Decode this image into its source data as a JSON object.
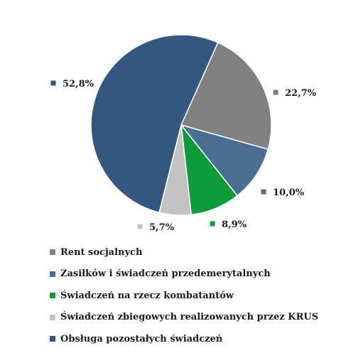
{
  "chart_data": {
    "type": "pie",
    "categories": [
      "Rent socjalnych",
      "Zasiłków i świadczeń przedemerytalnych",
      "Świadczeń na rzecz kombatantów",
      "Świadczeń zbiegowych realizowanych przez KRUS",
      "Obsługa pozostałych świadczeń"
    ],
    "values": [
      22.7,
      10.0,
      8.9,
      5.7,
      52.8
    ],
    "value_labels": [
      "22,7%",
      "10,0%",
      "8,9%",
      "5,7%",
      "52,8%"
    ],
    "colors": [
      "#808080",
      "#4a6d92",
      "#0d9b3c",
      "#c2c2c2",
      "#35577f"
    ],
    "legend": {
      "placement": "bottom",
      "entries": [
        "Rent socjalnych",
        "Zasiłków i świadczeń przedemerytalnych",
        "Świadczeń na rzecz kombatantów",
        "Świadczeń zbiegowych realizowanych przez KRUS",
        "Obsługa pozostałych świadczeń"
      ]
    },
    "start_angle_deg": 24,
    "direction": "clockwise"
  }
}
